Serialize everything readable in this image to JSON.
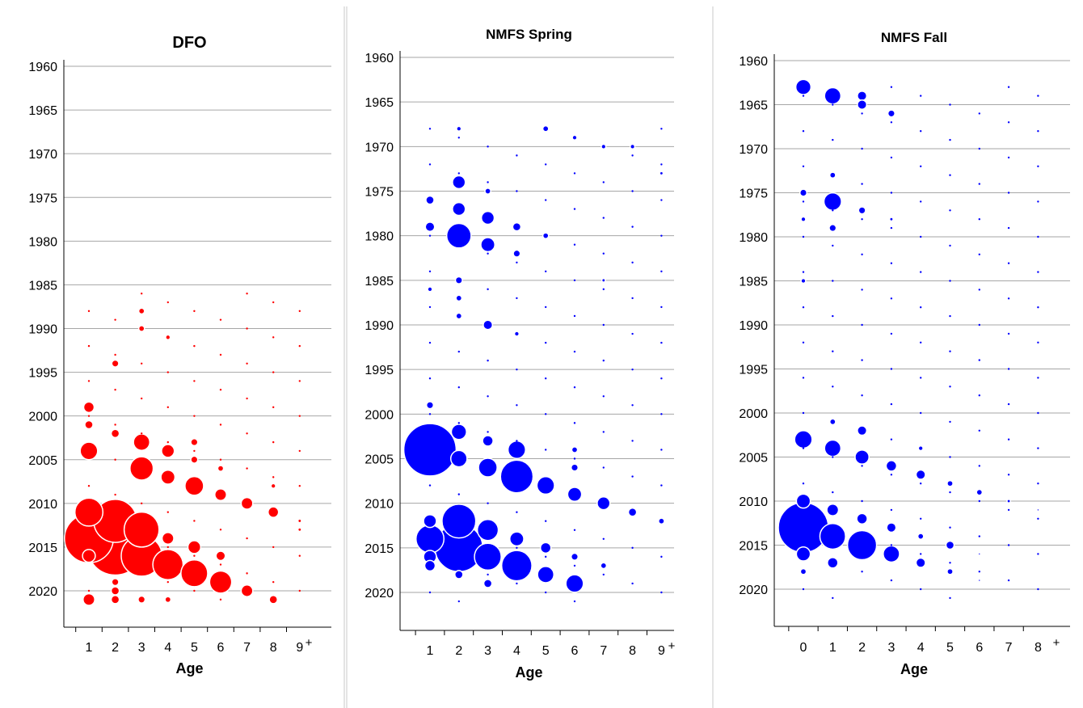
{
  "colors": {
    "dfo": "#ff0000",
    "spring": "#0000ff",
    "fall": "#0000ff",
    "grid": "#a6a6a6",
    "axis": "#000000",
    "divider": "#c8c8c8"
  },
  "chart_data": [
    {
      "type": "scatter",
      "title": "DFO",
      "xlabel": "Age",
      "ylabel": "",
      "x_ticks": [
        "1",
        "2",
        "3",
        "4",
        "5",
        "6",
        "7",
        "8",
        "9"
      ],
      "plus_label": "+",
      "y_ticks": [
        1960,
        1965,
        1970,
        1975,
        1980,
        1985,
        1990,
        1995,
        2000,
        2005,
        2010,
        2015,
        2020
      ],
      "ylim": [
        1960,
        2024
      ],
      "y_reversed": true,
      "grid": true,
      "marker": "bubble",
      "points": [
        [
          1,
          2004,
          1.5
        ],
        [
          1,
          2011,
          2.4
        ],
        [
          1,
          2014,
          4.2
        ],
        [
          1,
          2016,
          1.1
        ],
        [
          1,
          2021,
          1.0
        ],
        [
          1,
          1999,
          0.9
        ],
        [
          1,
          2001,
          0.7
        ],
        [
          2,
          2012,
          3.7
        ],
        [
          2,
          2015,
          4.8
        ],
        [
          2,
          2019,
          0.6
        ],
        [
          2,
          2020,
          0.7
        ],
        [
          2,
          2021,
          0.7
        ],
        [
          2,
          2002,
          0.7
        ],
        [
          2,
          1994,
          0.6
        ],
        [
          3,
          2006,
          2.0
        ],
        [
          3,
          2003,
          1.4
        ],
        [
          3,
          2013,
          3.0
        ],
        [
          3,
          2016,
          3.5
        ],
        [
          3,
          2021,
          0.6
        ],
        [
          3,
          1988,
          0.5
        ],
        [
          3,
          1990,
          0.5
        ],
        [
          4,
          2004,
          1.1
        ],
        [
          4,
          2007,
          1.2
        ],
        [
          4,
          2014,
          1.0
        ],
        [
          4,
          2017,
          2.6
        ],
        [
          4,
          2021,
          0.5
        ],
        [
          4,
          1991,
          0.4
        ],
        [
          5,
          2008,
          1.6
        ],
        [
          5,
          2015,
          1.1
        ],
        [
          5,
          2018,
          2.3
        ],
        [
          5,
          2003,
          0.6
        ],
        [
          5,
          2005,
          0.6
        ],
        [
          6,
          2009,
          1.0
        ],
        [
          6,
          2016,
          0.8
        ],
        [
          6,
          2019,
          1.9
        ],
        [
          6,
          2006,
          0.5
        ],
        [
          7,
          2010,
          1.0
        ],
        [
          7,
          2020,
          1.0
        ],
        [
          8,
          2011,
          0.9
        ],
        [
          8,
          2021,
          0.7
        ],
        [
          8,
          2008,
          0.4
        ],
        [
          9,
          2013,
          0.3
        ],
        [
          9,
          2012,
          0.3
        ]
      ]
    },
    {
      "type": "scatter",
      "title": "NMFS Spring",
      "xlabel": "Age",
      "ylabel": "",
      "x_ticks": [
        "1",
        "2",
        "3",
        "4",
        "5",
        "6",
        "7",
        "8",
        "9"
      ],
      "plus_label": "+",
      "y_ticks": [
        1960,
        1965,
        1970,
        1975,
        1980,
        1985,
        1990,
        1995,
        2000,
        2005,
        2010,
        2015,
        2020
      ],
      "ylim": [
        1960,
        2024
      ],
      "y_reversed": true,
      "grid": true,
      "marker": "bubble",
      "points": [
        [
          1,
          2004,
          4.5
        ],
        [
          1,
          2014,
          2.4
        ],
        [
          1,
          2016,
          1.1
        ],
        [
          1,
          2017,
          0.9
        ],
        [
          1,
          2012,
          1.1
        ],
        [
          1,
          1979,
          0.8
        ],
        [
          1,
          1976,
          0.7
        ],
        [
          1,
          1986,
          0.4
        ],
        [
          1,
          1999,
          0.6
        ],
        [
          2,
          2002,
          1.3
        ],
        [
          2,
          2005,
          1.4
        ],
        [
          2,
          1980,
          2.1
        ],
        [
          2,
          1974,
          1.1
        ],
        [
          2,
          1977,
          1.1
        ],
        [
          2,
          2012,
          2.9
        ],
        [
          2,
          2015,
          4.1
        ],
        [
          2,
          2018,
          0.7
        ],
        [
          2,
          1985,
          0.6
        ],
        [
          2,
          1987,
          0.5
        ],
        [
          2,
          1989,
          0.5
        ],
        [
          2,
          1968,
          0.4
        ],
        [
          3,
          2006,
          1.6
        ],
        [
          3,
          2003,
          0.9
        ],
        [
          3,
          1978,
          1.1
        ],
        [
          3,
          1981,
          1.2
        ],
        [
          3,
          1990,
          0.8
        ],
        [
          3,
          2013,
          1.8
        ],
        [
          3,
          2016,
          2.3
        ],
        [
          3,
          2019,
          0.7
        ],
        [
          3,
          1975,
          0.5
        ],
        [
          4,
          2004,
          1.5
        ],
        [
          4,
          2007,
          2.8
        ],
        [
          4,
          1979,
          0.7
        ],
        [
          4,
          1982,
          0.6
        ],
        [
          4,
          2014,
          1.2
        ],
        [
          4,
          2017,
          2.6
        ],
        [
          4,
          1991,
          0.4
        ],
        [
          5,
          2008,
          1.5
        ],
        [
          5,
          2015,
          0.9
        ],
        [
          5,
          2018,
          1.4
        ],
        [
          5,
          1980,
          0.5
        ],
        [
          5,
          1968,
          0.5
        ],
        [
          6,
          2009,
          1.2
        ],
        [
          6,
          2016,
          0.6
        ],
        [
          6,
          2019,
          1.5
        ],
        [
          6,
          2006,
          0.6
        ],
        [
          6,
          2004,
          0.5
        ],
        [
          6,
          1969,
          0.4
        ],
        [
          7,
          2010,
          1.1
        ],
        [
          7,
          2017,
          0.5
        ],
        [
          7,
          1985,
          0.3
        ],
        [
          7,
          1970,
          0.4
        ],
        [
          8,
          2011,
          0.7
        ],
        [
          8,
          1970,
          0.4
        ],
        [
          9,
          2012,
          0.5
        ],
        [
          9,
          1973,
          0.3
        ]
      ]
    },
    {
      "type": "scatter",
      "title": "NMFS Fall",
      "xlabel": "Age",
      "ylabel": "",
      "x_ticks": [
        "0",
        "1",
        "2",
        "3",
        "4",
        "5",
        "6",
        "7",
        "8"
      ],
      "plus_label": "+",
      "y_ticks": [
        1960,
        1965,
        1970,
        1975,
        1980,
        1985,
        1990,
        1995,
        2000,
        2005,
        2010,
        2015,
        2020
      ],
      "ylim": [
        1960,
        2024
      ],
      "y_reversed": true,
      "grid": true,
      "marker": "bubble",
      "points": [
        [
          0,
          1963,
          1.3
        ],
        [
          0,
          2003,
          1.5
        ],
        [
          0,
          2010,
          1.2
        ],
        [
          0,
          2013,
          4.3
        ],
        [
          0,
          2016,
          1.2
        ],
        [
          0,
          1975,
          0.6
        ],
        [
          0,
          1978,
          0.4
        ],
        [
          0,
          1985,
          0.4
        ],
        [
          0,
          2018,
          0.5
        ],
        [
          1,
          1964,
          1.4
        ],
        [
          1,
          1976,
          1.5
        ],
        [
          1,
          2004,
          1.4
        ],
        [
          1,
          2011,
          1.0
        ],
        [
          1,
          2014,
          2.2
        ],
        [
          1,
          2017,
          0.9
        ],
        [
          1,
          1973,
          0.5
        ],
        [
          1,
          1979,
          0.6
        ],
        [
          1,
          2001,
          0.5
        ],
        [
          2,
          1964,
          0.8
        ],
        [
          2,
          1965,
          0.8
        ],
        [
          2,
          2002,
          0.8
        ],
        [
          2,
          2005,
          1.2
        ],
        [
          2,
          2012,
          0.9
        ],
        [
          2,
          2015,
          2.5
        ],
        [
          2,
          1977,
          0.6
        ],
        [
          3,
          2006,
          0.9
        ],
        [
          3,
          2013,
          0.8
        ],
        [
          3,
          2016,
          1.4
        ],
        [
          3,
          1966,
          0.6
        ],
        [
          3,
          1978,
          0.3
        ],
        [
          4,
          2007,
          0.8
        ],
        [
          4,
          2014,
          0.5
        ],
        [
          4,
          2017,
          0.8
        ],
        [
          4,
          2004,
          0.4
        ],
        [
          5,
          2008,
          0.5
        ],
        [
          5,
          2015,
          0.7
        ],
        [
          5,
          2018,
          0.5
        ],
        [
          6,
          2009,
          0.5
        ],
        [
          6,
          2016,
          0.2
        ],
        [
          6,
          2019,
          0.2
        ],
        [
          7,
          2010,
          0.3
        ],
        [
          8,
          2011,
          0.2
        ]
      ]
    }
  ]
}
